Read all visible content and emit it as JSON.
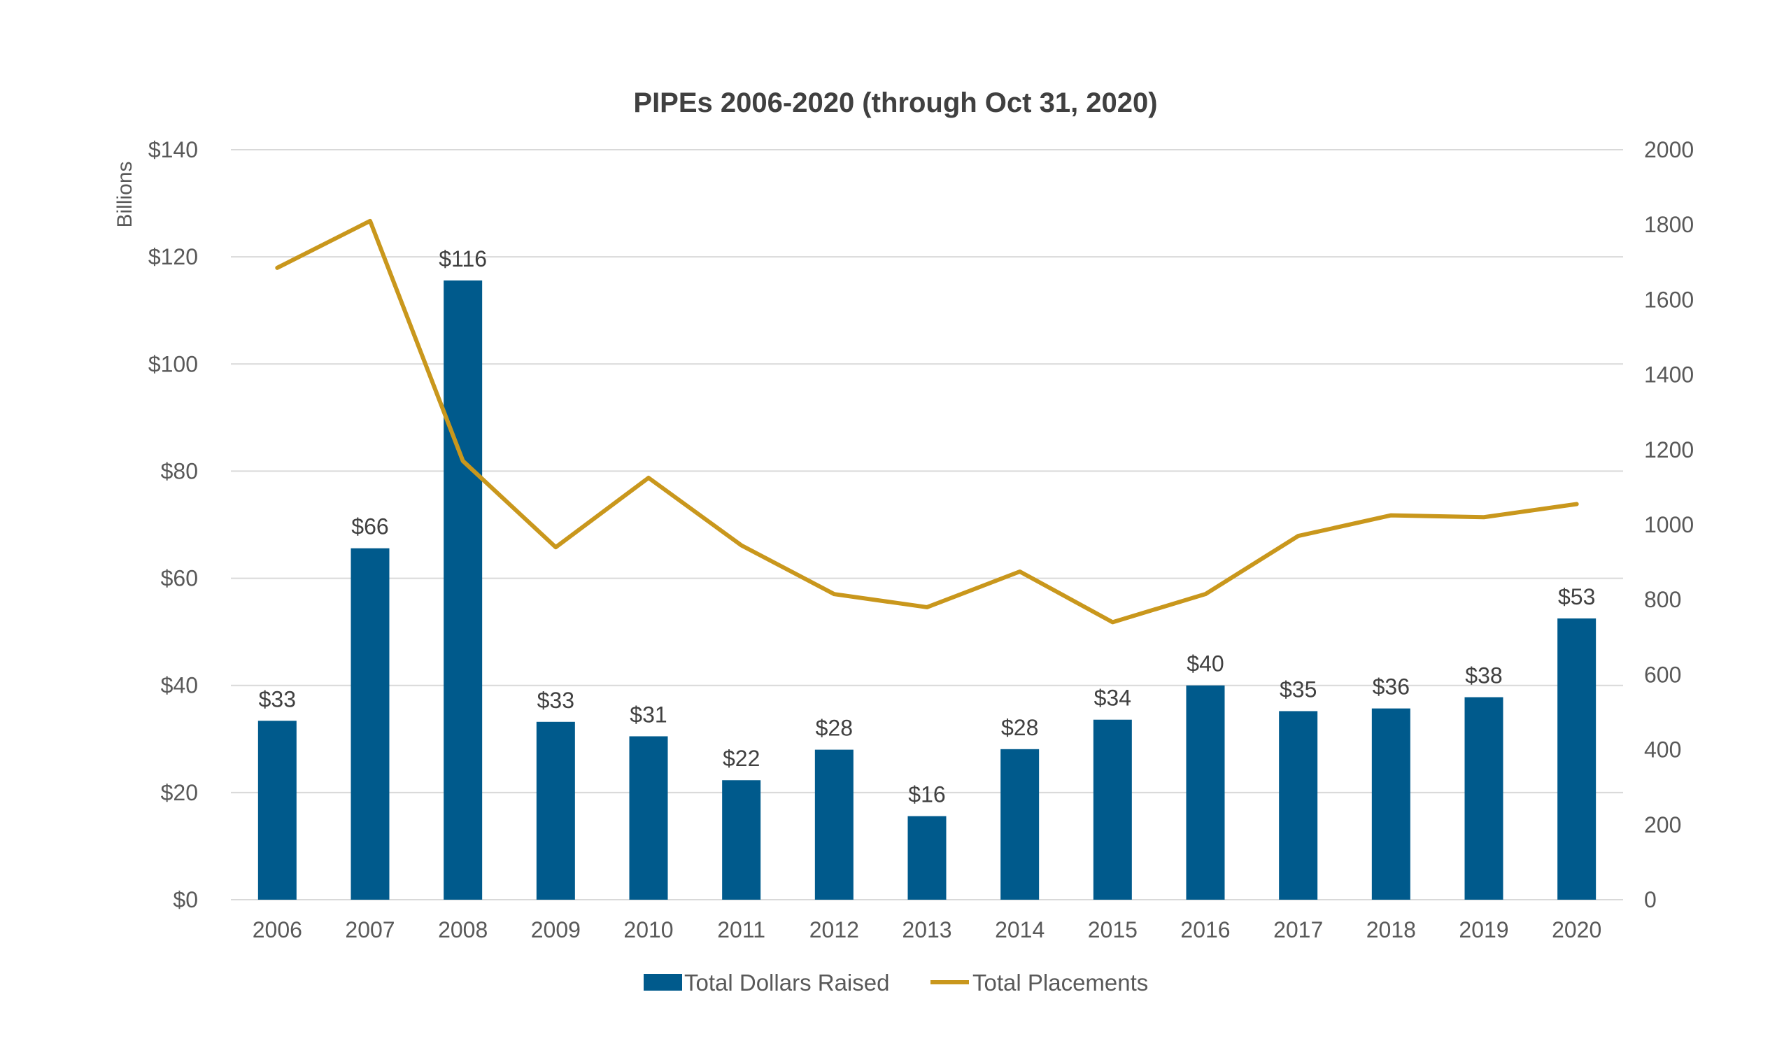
{
  "chart_data": {
    "type": "bar",
    "title": "PIPEs 2006-2020 (through Oct 31, 2020)",
    "ylabel": "Billions",
    "xlabel": "",
    "categories": [
      "2006",
      "2007",
      "2008",
      "2009",
      "2010",
      "2011",
      "2012",
      "2013",
      "2014",
      "2015",
      "2016",
      "2017",
      "2018",
      "2019",
      "2020"
    ],
    "ylim": [
      0,
      140
    ],
    "y_ticks": [
      "$0",
      "$20",
      "$40",
      "$60",
      "$80",
      "$100",
      "$120",
      "$140"
    ],
    "y2lim": [
      0,
      2000
    ],
    "y2_ticks": [
      "0",
      "200",
      "400",
      "600",
      "800",
      "1000",
      "1200",
      "1400",
      "1600",
      "1800",
      "2000"
    ],
    "grid": true,
    "legend_position": "bottom",
    "series": [
      {
        "name": "Total Dollars Raised",
        "type": "bar",
        "axis": "left",
        "color": "#005A8C",
        "values": [
          33.4,
          65.6,
          115.6,
          33.2,
          30.5,
          22.3,
          28.0,
          15.6,
          28.1,
          33.6,
          40.0,
          35.2,
          35.7,
          37.8,
          52.5
        ],
        "labels": [
          "$33",
          "$66",
          "$116",
          "$33",
          "$31",
          "$22",
          "$28",
          "$16",
          "$28",
          "$34",
          "$40",
          "$35",
          "$36",
          "$38",
          "$53"
        ]
      },
      {
        "name": "Total Placements",
        "type": "line",
        "axis": "right",
        "color": "#C9971C",
        "values": [
          1685,
          1810,
          1170,
          940,
          1125,
          945,
          815,
          780,
          875,
          740,
          815,
          970,
          1025,
          1020,
          1055
        ]
      }
    ]
  }
}
